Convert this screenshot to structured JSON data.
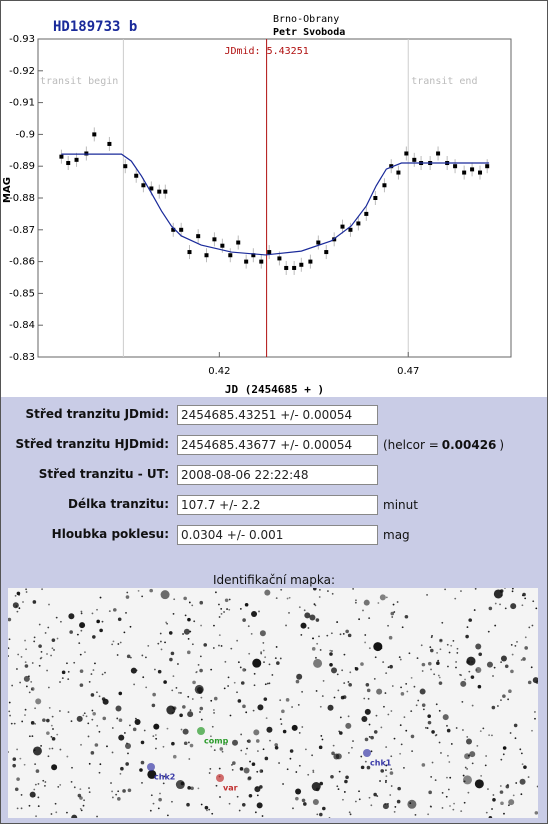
{
  "chart_data": {
    "type": "scatter",
    "title": "HD189733 b",
    "observatory": "Brno-Obrany",
    "observer": "Petr Svoboda",
    "x_label": "JD (2454685 + )",
    "y_label": "MAG",
    "xlim": [
      0.372,
      0.4972
    ],
    "xticks": [
      0.42,
      0.47
    ],
    "ylim": [
      -0.83,
      -0.93
    ],
    "yticks": [
      -0.93,
      -0.92,
      -0.91,
      -0.9,
      -0.89,
      -0.88,
      -0.87,
      -0.86,
      -0.85,
      -0.84,
      -0.83
    ],
    "title_color": "#1a2a9a",
    "vlines": [
      {
        "x": 0.3946,
        "label": "transit begin",
        "color": "#cccccc"
      },
      {
        "x": 0.47,
        "label": "transit end",
        "color": "#cccccc"
      },
      {
        "x": 0.43251,
        "label": "JDmid: 5.43251",
        "color": "#b01010"
      }
    ],
    "series": [
      {
        "kind": "points",
        "color": "#000000",
        "x": [
          0.3782,
          0.38,
          0.3822,
          0.3848,
          0.3869,
          0.3909,
          0.3951,
          0.398,
          0.3999,
          0.402,
          0.4041,
          0.4057,
          0.4078,
          0.4099,
          0.4121,
          0.4144,
          0.4166,
          0.4187,
          0.4208,
          0.4229,
          0.425,
          0.4271,
          0.429,
          0.4311,
          0.4332,
          0.4359,
          0.4377,
          0.4398,
          0.4417,
          0.4441,
          0.4462,
          0.4483,
          0.4504,
          0.4526,
          0.4547,
          0.4568,
          0.4589,
          0.4613,
          0.4637,
          0.4655,
          0.4674,
          0.4695,
          0.4716,
          0.4734,
          0.4758,
          0.4779,
          0.4803,
          0.4824,
          0.4848,
          0.4869,
          0.489,
          0.4909
        ],
        "values": [
          -0.893,
          -0.891,
          -0.892,
          -0.894,
          -0.9,
          -0.897,
          -0.89,
          -0.887,
          -0.884,
          -0.883,
          -0.882,
          -0.882,
          -0.87,
          -0.87,
          -0.863,
          -0.868,
          -0.862,
          -0.867,
          -0.865,
          -0.862,
          -0.866,
          -0.86,
          -0.862,
          -0.86,
          -0.863,
          -0.861,
          -0.858,
          -0.858,
          -0.859,
          -0.86,
          -0.866,
          -0.863,
          -0.867,
          -0.871,
          -0.87,
          -0.872,
          -0.875,
          -0.88,
          -0.884,
          -0.89,
          -0.888,
          -0.894,
          -0.892,
          -0.891,
          -0.891,
          -0.894,
          -0.891,
          -0.89,
          -0.888,
          -0.889,
          -0.888,
          -0.89
        ]
      },
      {
        "kind": "line",
        "color": "#1a2a9a",
        "x": [
          0.3782,
          0.3941,
          0.3967,
          0.3994,
          0.402,
          0.4047,
          0.4073,
          0.4099,
          0.4152,
          0.4232,
          0.4322,
          0.4417,
          0.4496,
          0.4549,
          0.4589,
          0.4615,
          0.4642,
          0.4682,
          0.4761,
          0.4914
        ],
        "values": [
          -0.8938,
          -0.8938,
          -0.8916,
          -0.8869,
          -0.8816,
          -0.8759,
          -0.8712,
          -0.8681,
          -0.8652,
          -0.863,
          -0.8621,
          -0.8633,
          -0.8665,
          -0.8712,
          -0.8775,
          -0.8838,
          -0.8891,
          -0.891,
          -0.891,
          -0.891
        ]
      }
    ]
  },
  "form": {
    "rows": [
      {
        "label": "Střed tranzitu JDmid:",
        "value": "2454685.43251 +/- 0.00054"
      },
      {
        "label": "Střed tranzitu HJDmid:",
        "value": "2454685.43677 +/- 0.00054",
        "suffix": [
          "(helcor =",
          "0.00426",
          ")"
        ]
      },
      {
        "label": "Střed tranzitu - UT:",
        "value": "2008-08-06 22:22:48"
      },
      {
        "label": "Délka tranzitu:",
        "value": "107.7 +/- 2.2",
        "suffix": "minut"
      },
      {
        "label": "Hloubka poklesu:",
        "value": "0.0304 +/- 0.001",
        "suffix": "mag"
      }
    ]
  },
  "map": {
    "caption": "Identifikační mapka:",
    "markers": [
      {
        "label": "comp",
        "color": "#2a9a2a"
      },
      {
        "label": "chk2",
        "color": "#3a3aa8"
      },
      {
        "label": "var",
        "color": "#c03030"
      },
      {
        "label": "chk1",
        "color": "#3a3aa8"
      }
    ]
  }
}
